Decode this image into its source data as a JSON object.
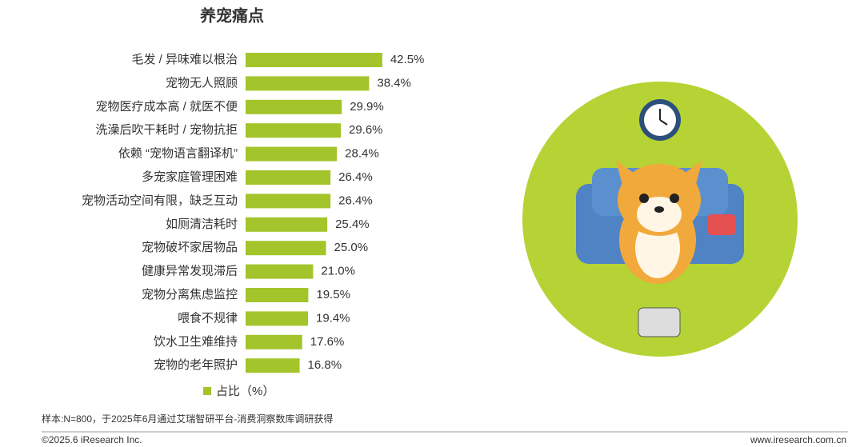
{
  "chart_data": {
    "type": "bar",
    "title": "养宠痛点",
    "categories": [
      "毛发 / 异味难以根治",
      "宠物无人照顾",
      "宠物医疗成本高 / 就医不便",
      "洗澡后吹干耗时 / 宠物抗拒",
      "依赖 “宠物语言翻译机”",
      "多宠家庭管理困难",
      "宠物活动空间有限，缺乏互动",
      "如厕清洁耗时",
      "宠物破坏家居物品",
      "健康异常发现滞后",
      "宠物分离焦虑监控",
      "喂食不规律",
      "饮水卫生难维持",
      "宠物的老年照护"
    ],
    "series": [
      {
        "name": "占比（%）",
        "color": "#a3c52b",
        "values": [
          42.5,
          38.4,
          29.9,
          29.6,
          28.4,
          26.4,
          26.4,
          25.4,
          25.0,
          21.0,
          19.5,
          19.4,
          17.6,
          16.8
        ],
        "value_labels": [
          "42.5%",
          "38.4%",
          "29.9%",
          "29.6%",
          "28.4%",
          "26.4%",
          "26.4%",
          "25.4%",
          "25.0%",
          "21.0%",
          "19.5%",
          "19.4%",
          "17.6%",
          "16.8%"
        ]
      }
    ]
  },
  "footnote": "样本:N=800，于2025年6月通过艾瑞智研平台-消费洞察数库调研获得",
  "copyright": "©2025.6 iResearch Inc.",
  "website": "www.iresearch.com.cn"
}
